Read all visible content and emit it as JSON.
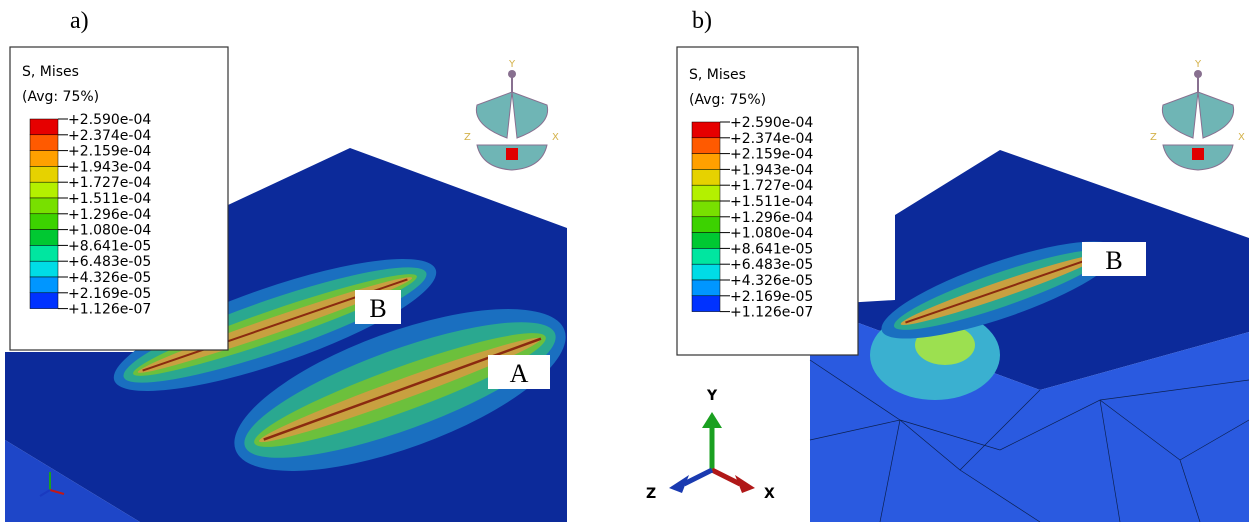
{
  "panels": [
    {
      "label": "a)",
      "legend": {
        "title": "S, Mises",
        "subtitle": "(Avg: 75%)",
        "levels": [
          "+2.590e-04",
          "+2.374e-04",
          "+2.159e-04",
          "+1.943e-04",
          "+1.727e-04",
          "+1.511e-04",
          "+1.296e-04",
          "+1.080e-04",
          "+8.641e-05",
          "+6.483e-05",
          "+4.326e-05",
          "+2.169e-05",
          "+1.126e-07"
        ]
      },
      "annotations": [
        "B",
        "A"
      ],
      "view_triad": {
        "y": "Y",
        "z": "Z",
        "x": "X"
      }
    },
    {
      "label": "b)",
      "legend": {
        "title": "S, Mises",
        "subtitle": "(Avg: 75%)",
        "levels": [
          "+2.590e-04",
          "+2.374e-04",
          "+2.159e-04",
          "+1.943e-04",
          "+1.727e-04",
          "+1.511e-04",
          "+1.296e-04",
          "+1.080e-04",
          "+8.641e-05",
          "+6.483e-05",
          "+4.326e-05",
          "+2.169e-05",
          "+1.126e-07"
        ]
      },
      "annotations": [
        "B"
      ],
      "view_triad": {
        "y": "Y",
        "z": "Z",
        "x": "X"
      },
      "axis_triad": {
        "y": "Y",
        "z": "Z",
        "x": "X"
      }
    }
  ]
}
